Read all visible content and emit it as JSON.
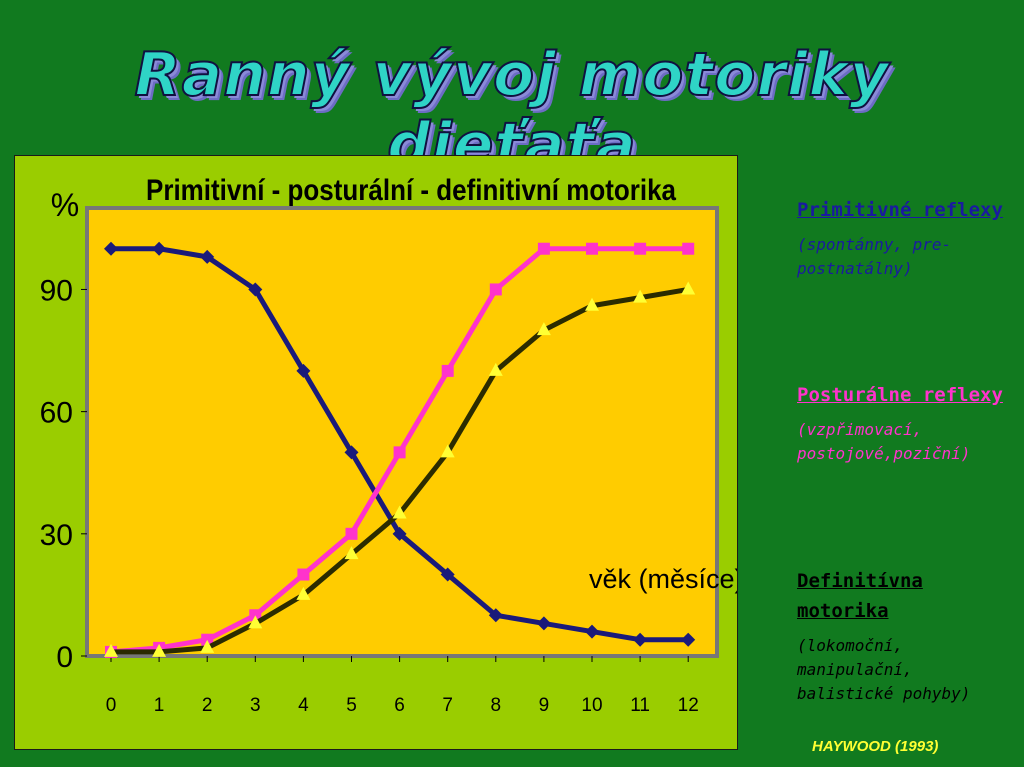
{
  "slide": {
    "title": "Ranný vývoj motoriky dieťaťa",
    "citation": "HAYWOOD (1993)"
  },
  "legend": [
    {
      "head": "Primitivné reflexy",
      "desc": "(spontánny, pre-postnatálny)",
      "color": "#1a1aa0"
    },
    {
      "head": "Posturálne reflexy",
      "desc": "(vzpřimovací, postojové,poziční)",
      "color": "#ff33cc"
    },
    {
      "head": "Definitívna motorika",
      "desc": "(lokomoční, manipulační, balistické pohyby)",
      "color": "#000000"
    }
  ],
  "chart_data": {
    "type": "line",
    "title": "Primitivní - posturální - definitivní motorika",
    "ylabel": "%",
    "xlabel": "věk (měsíce)",
    "x": [
      0,
      1,
      2,
      3,
      4,
      5,
      6,
      7,
      8,
      9,
      10,
      11,
      12
    ],
    "ylim": [
      0,
      110
    ],
    "yticks": [
      0,
      30,
      60,
      90
    ],
    "series": [
      {
        "values": [
          100,
          100,
          98,
          90,
          70,
          50,
          30,
          20,
          10,
          8,
          6,
          4,
          4
        ],
        "color": "#1a1a7a",
        "marker": "diamond"
      },
      {
        "values": [
          1,
          2,
          4,
          10,
          20,
          30,
          50,
          70,
          90,
          100,
          100,
          100,
          100
        ],
        "color": "#ff33cc",
        "marker": "square"
      },
      {
        "values": [
          1,
          1,
          2,
          8,
          15,
          25,
          35,
          50,
          70,
          80,
          86,
          88,
          90
        ],
        "color": "#2b2b00",
        "marker": "triangle"
      }
    ],
    "plot_bg": "#ffcc00",
    "grid": false
  }
}
